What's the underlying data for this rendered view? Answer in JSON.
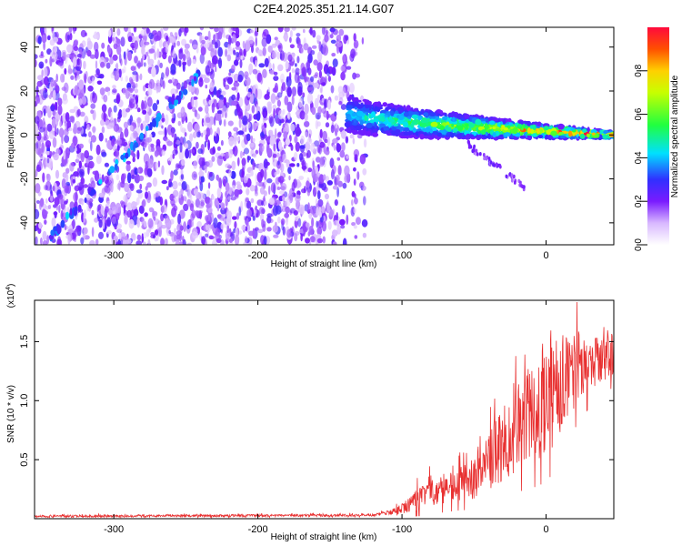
{
  "figure": {
    "title": "C2E4.2025.351.21.14.G07"
  },
  "chart_data": [
    {
      "type": "heatmap",
      "title": "C2E4.2025.351.21.14.G07",
      "xlabel": "Height of straight line (km)",
      "ylabel": "Frequency (Hz)",
      "xlim": [
        -355,
        47
      ],
      "ylim": [
        -50,
        49
      ],
      "xticks": [
        -300,
        -200,
        -100,
        0
      ],
      "yticks": [
        -40,
        -20,
        0,
        20,
        40
      ],
      "colorbar": {
        "label": "Normalized spectral amplitude",
        "range": [
          0,
          1
        ],
        "ticks": [
          0.0,
          0.2,
          0.4,
          0.6,
          0.8
        ],
        "tick_labels": [
          "0.0",
          "0.2",
          "0.4",
          "0.6",
          "0.8"
        ]
      },
      "features": {
        "noise_region_x": [
          -355,
          -125
        ],
        "signal_band_start_x": -138,
        "signal_band_start_freq": 10,
        "signal_band_end_freq": 0,
        "diagonal_track_start": [
          -345,
          -47
        ],
        "diagonal_track_end": [
          -240,
          28
        ]
      }
    },
    {
      "type": "line",
      "xlabel": "Height of straight line (km)",
      "ylabel": "SNR (10 * v/v)",
      "exponent_label": "(x10",
      "exponent_power": "4",
      "exponent_close": ")",
      "xlim": [
        -355,
        47
      ],
      "ylim": [
        0.0,
        1.85
      ],
      "xticks": [
        -300,
        -200,
        -100,
        0
      ],
      "yticks": [
        0.5,
        1.0,
        1.5
      ],
      "ytick_labels": [
        "0.5",
        "1.0",
        "1.5"
      ],
      "series": [
        {
          "name": "SNR",
          "color": "#e83030",
          "envelope": {
            "x": [
              -355,
              -120,
              -105,
              -95,
              -80,
              -60,
              -45,
              -35,
              -25,
              -15,
              -5,
              5,
              15,
              30,
              47
            ],
            "mean": [
              0.02,
              0.03,
              0.06,
              0.13,
              0.22,
              0.28,
              0.38,
              0.55,
              0.7,
              0.85,
              0.95,
              1.05,
              1.2,
              1.32,
              1.42
            ],
            "spread": [
              0.01,
              0.01,
              0.03,
              0.08,
              0.12,
              0.14,
              0.2,
              0.28,
              0.35,
              0.4,
              0.45,
              0.45,
              0.35,
              0.25,
              0.2
            ]
          }
        }
      ]
    }
  ]
}
